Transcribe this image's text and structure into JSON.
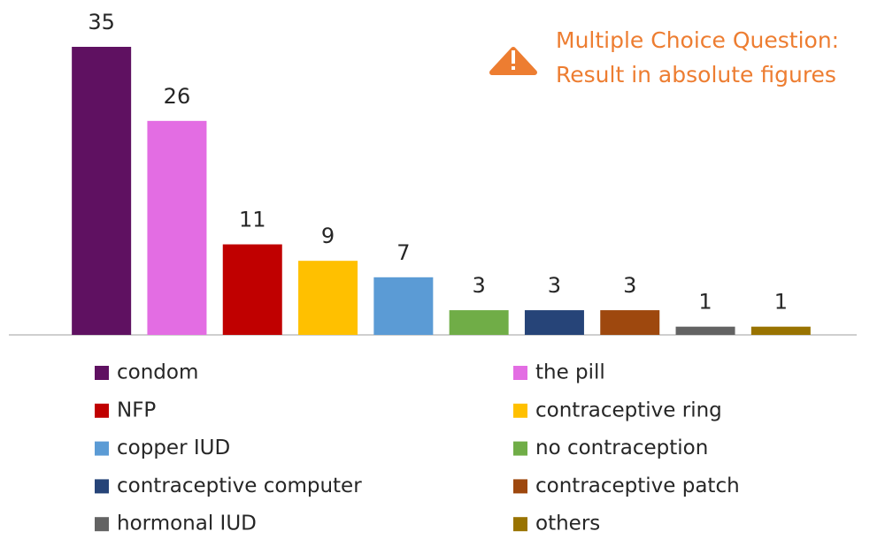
{
  "chart_data": {
    "type": "bar",
    "annotation": [
      "Multiple Choice Question:",
      "Result in absolute figures"
    ],
    "categories": [
      "condom",
      "the pill",
      "NFP",
      "contraceptive ring",
      "copper IUD",
      "no contraception",
      "contraceptive computer",
      "contraceptive patch",
      "hormonal IUD",
      "others"
    ],
    "values": [
      35,
      26,
      11,
      9,
      7,
      3,
      3,
      3,
      1,
      1
    ],
    "colors": [
      "#5f1161",
      "#e36de3",
      "#c00000",
      "#ffc000",
      "#5b9bd5",
      "#70ad47",
      "#264478",
      "#9e480e",
      "#636363",
      "#997300"
    ],
    "legend": "bottom"
  }
}
